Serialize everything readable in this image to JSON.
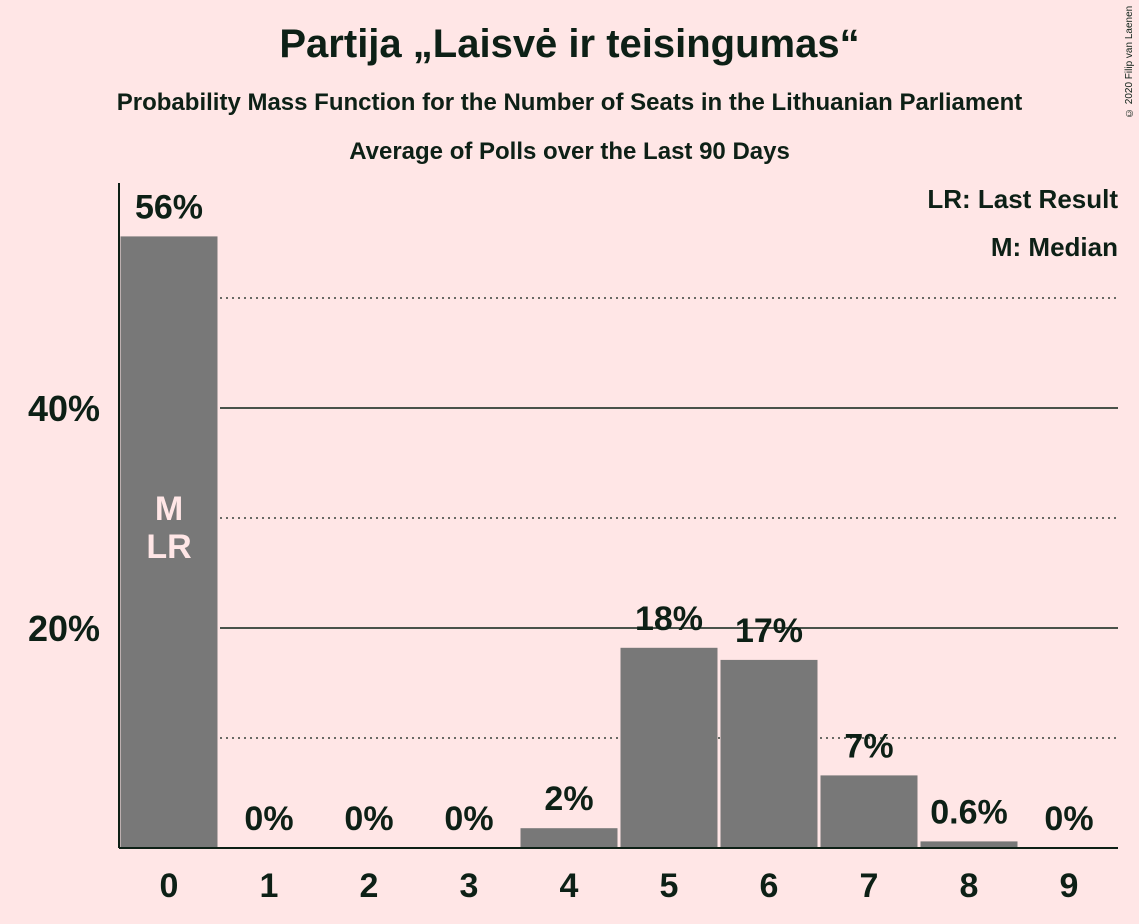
{
  "title": "Partija „Laisvė ir teisingumas“",
  "subtitle": "Probability Mass Function for the Number of Seats in the Lithuanian Parliament",
  "subtitle2": "Average of Polls over the Last 90 Days",
  "copyright": "© 2020 Filip van Laenen",
  "legend": {
    "last_result": "LR: Last Result",
    "median": "M: Median"
  },
  "colors": {
    "background": "#ffe6e6",
    "bar": "#787878",
    "text": "#0d2016",
    "marker_text": "#ffe6e6"
  },
  "chart_data": {
    "type": "bar",
    "categories": [
      "0",
      "1",
      "2",
      "3",
      "4",
      "5",
      "6",
      "7",
      "8",
      "9"
    ],
    "values": [
      55.6,
      0,
      0,
      0,
      1.8,
      18.2,
      17.1,
      6.6,
      0.6,
      0
    ],
    "value_labels": [
      "56%",
      "0%",
      "0%",
      "0%",
      "2%",
      "18%",
      "17%",
      "7%",
      "0.6%",
      "0%"
    ],
    "y_tick_labels": [
      {
        "value": 20,
        "label": "20%"
      },
      {
        "value": 40,
        "label": "40%"
      }
    ],
    "minor_gridlines": [
      10,
      30,
      50
    ],
    "ylim": [
      0,
      60
    ],
    "markers": [
      {
        "category": "0",
        "labels": [
          "M",
          "LR"
        ]
      }
    ],
    "grid": true
  }
}
